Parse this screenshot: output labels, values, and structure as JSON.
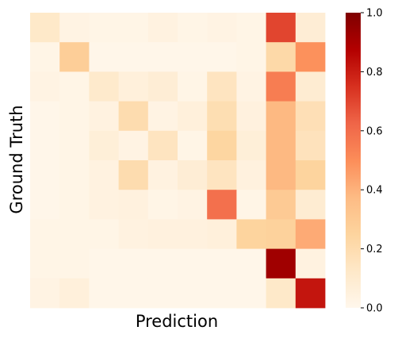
{
  "chart_data": {
    "type": "heatmap",
    "title": "",
    "xlabel": "Prediction",
    "ylabel": "Ground Truth",
    "rows": 10,
    "cols": 10,
    "values": [
      [
        0.12,
        0.03,
        0.02,
        0.02,
        0.04,
        0.02,
        0.03,
        0.02,
        0.7,
        0.08
      ],
      [
        0.02,
        0.28,
        0.01,
        0.01,
        0.01,
        0.01,
        0.01,
        0.02,
        0.22,
        0.49
      ],
      [
        0.03,
        0.02,
        0.11,
        0.06,
        0.08,
        0.02,
        0.15,
        0.03,
        0.55,
        0.09
      ],
      [
        0.01,
        0.02,
        0.04,
        0.2,
        0.03,
        0.06,
        0.19,
        0.05,
        0.38,
        0.18
      ],
      [
        0.01,
        0.02,
        0.07,
        0.03,
        0.15,
        0.02,
        0.24,
        0.07,
        0.38,
        0.16
      ],
      [
        0.01,
        0.02,
        0.04,
        0.2,
        0.04,
        0.08,
        0.15,
        0.05,
        0.38,
        0.25
      ],
      [
        0.01,
        0.02,
        0.04,
        0.05,
        0.02,
        0.03,
        0.59,
        0.02,
        0.3,
        0.09
      ],
      [
        0.02,
        0.02,
        0.02,
        0.04,
        0.05,
        0.05,
        0.06,
        0.25,
        0.26,
        0.42
      ],
      [
        0.02,
        0.02,
        0.01,
        0.01,
        0.01,
        0.01,
        0.01,
        0.01,
        0.92,
        0.04
      ],
      [
        0.03,
        0.06,
        0.01,
        0.01,
        0.01,
        0.01,
        0.01,
        0.01,
        0.12,
        0.82
      ]
    ],
    "colorscale": "OrRd",
    "colorbar": {
      "min": 0.0,
      "max": 1.0,
      "ticks": [
        "0.0",
        "0.2",
        "0.4",
        "0.6",
        "0.8",
        "1.0"
      ]
    },
    "grid": false,
    "x_ticks_shown": false,
    "y_ticks_shown": false
  }
}
